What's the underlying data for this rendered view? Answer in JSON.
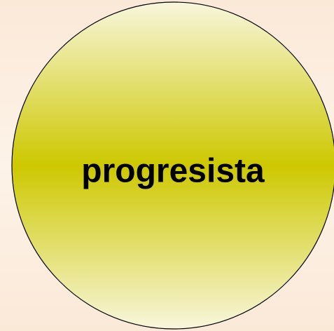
{
  "label": "progresista"
}
